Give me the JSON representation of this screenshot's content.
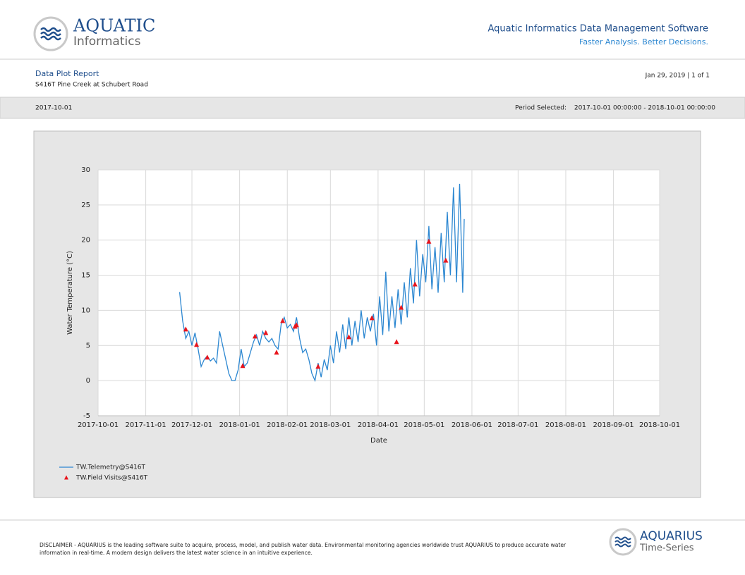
{
  "header": {
    "logo_line1": "AQUATIC",
    "logo_line2": "Informatics",
    "product": "Aquatic Informatics Data Management Software",
    "tagline": "Faster Analysis. Better Decisions."
  },
  "report": {
    "title": "Data Plot Report",
    "location": "S416T Pine Creek at Schubert Road",
    "page_info": "Jan 29, 2019 | 1 of 1",
    "start_date": "2017-10-01",
    "period_label": "Period Selected:",
    "period": "2017-10-01 00:00:00 - 2018-10-01 00:00:00"
  },
  "chart_data": {
    "type": "line",
    "xlabel": "Date",
    "ylabel": "Water Temperature (°C)",
    "xlim": [
      "2017-10-01",
      "2018-10-01"
    ],
    "xticks": [
      "2017-10-01",
      "2017-11-01",
      "2017-12-01",
      "2018-01-01",
      "2018-02-01",
      "2018-03-01",
      "2018-04-01",
      "2018-05-01",
      "2018-06-01",
      "2018-07-01",
      "2018-08-01",
      "2018-09-01",
      "2018-10-01"
    ],
    "ylim": [
      -5,
      30
    ],
    "yticks": [
      -5,
      0,
      5,
      10,
      15,
      20,
      25,
      30
    ],
    "grid": true,
    "legend": "bottom-left",
    "series": [
      {
        "name": "TW.Telemetry@S416T",
        "color": "#2c87d1",
        "marker": "line",
        "x": [
          "2017-11-23",
          "2017-11-25",
          "2017-11-27",
          "2017-11-29",
          "2017-12-01",
          "2017-12-03",
          "2017-12-05",
          "2017-12-07",
          "2017-12-09",
          "2017-12-11",
          "2017-12-13",
          "2017-12-15",
          "2017-12-17",
          "2017-12-19",
          "2017-12-21",
          "2017-12-23",
          "2017-12-25",
          "2017-12-27",
          "2017-12-29",
          "2017-12-31",
          "2018-01-02",
          "2018-01-04",
          "2018-01-06",
          "2018-01-08",
          "2018-01-10",
          "2018-01-12",
          "2018-01-14",
          "2018-01-16",
          "2018-01-18",
          "2018-01-20",
          "2018-01-22",
          "2018-01-24",
          "2018-01-26",
          "2018-01-28",
          "2018-01-30",
          "2018-02-01",
          "2018-02-03",
          "2018-02-05",
          "2018-02-07",
          "2018-02-09",
          "2018-02-11",
          "2018-02-13",
          "2018-02-15",
          "2018-02-17",
          "2018-02-19",
          "2018-02-21",
          "2018-02-23",
          "2018-02-25",
          "2018-02-27",
          "2018-03-01",
          "2018-03-03",
          "2018-03-05",
          "2018-03-07",
          "2018-03-09",
          "2018-03-11",
          "2018-03-13",
          "2018-03-15",
          "2018-03-17",
          "2018-03-19",
          "2018-03-21",
          "2018-03-23",
          "2018-03-25",
          "2018-03-27",
          "2018-03-29",
          "2018-03-31",
          "2018-04-02",
          "2018-04-04",
          "2018-04-06",
          "2018-04-08",
          "2018-04-10",
          "2018-04-12",
          "2018-04-14",
          "2018-04-16",
          "2018-04-18",
          "2018-04-20",
          "2018-04-22",
          "2018-04-24",
          "2018-04-26",
          "2018-04-28",
          "2018-04-30",
          "2018-05-02",
          "2018-05-04",
          "2018-05-06",
          "2018-05-08",
          "2018-05-10",
          "2018-05-12",
          "2018-05-14",
          "2018-05-16",
          "2018-05-18",
          "2018-05-20",
          "2018-05-22",
          "2018-05-24",
          "2018-05-26",
          "2018-05-27"
        ],
        "values": [
          12.6,
          8.5,
          6.0,
          7.0,
          5.0,
          6.8,
          4.5,
          2.0,
          3.0,
          3.5,
          2.8,
          3.2,
          2.5,
          7.0,
          5.0,
          3.0,
          1.0,
          0,
          0,
          1.5,
          4.5,
          2.0,
          2.5,
          4.0,
          5.5,
          6.5,
          5.0,
          7.0,
          6.0,
          5.5,
          6.0,
          5.0,
          4.5,
          8.0,
          9.0,
          7.5,
          8.0,
          7.0,
          9.0,
          6.0,
          4.0,
          4.5,
          3.0,
          1.0,
          0,
          2.5,
          0.5,
          3.0,
          1.5,
          5.0,
          2.5,
          7.0,
          4.0,
          8.0,
          4.5,
          9.0,
          5.0,
          8.5,
          5.5,
          10.0,
          6.0,
          9.0,
          7.0,
          9.5,
          5.0,
          12.0,
          6.5,
          15.5,
          7.0,
          12.0,
          7.5,
          13.0,
          8.0,
          14.0,
          9.0,
          16.0,
          11.0,
          20.0,
          12.0,
          18.0,
          14.0,
          22.0,
          13.0,
          19.0,
          12.5,
          21.0,
          14.0,
          24.0,
          15.0,
          27.5,
          14.0,
          28.0,
          12.5,
          23.0
        ]
      },
      {
        "name": "TW.Field Visits@S416T",
        "color": "#e8141c",
        "marker": "triangle",
        "x": [
          "2017-11-27",
          "2017-12-04",
          "2017-12-11",
          "2018-01-03",
          "2018-01-11",
          "2018-01-18",
          "2018-01-25",
          "2018-01-29",
          "2018-02-06",
          "2018-02-07",
          "2018-02-21",
          "2018-03-13",
          "2018-03-28",
          "2018-04-13",
          "2018-04-16",
          "2018-04-25",
          "2018-05-04",
          "2018-05-15"
        ],
        "values": [
          7.3,
          5.1,
          3.3,
          2.1,
          6.3,
          6.8,
          4.0,
          8.5,
          7.7,
          7.9,
          2.0,
          6.2,
          8.9,
          5.5,
          10.4,
          13.7,
          19.8,
          17.1
        ]
      }
    ]
  },
  "footer": {
    "disclaimer_line1": "DISCLAIMER - AQUARIUS is the leading software suite to acquire, process, model, and publish water data. Environmental monitoring agencies worldwide trust AQUARIUS to produce accurate water",
    "disclaimer_line2": "information in real-time. A modern design delivers the latest water science in an intuitive experience.",
    "logo_line1": "AQUARIUS",
    "logo_line2": "Time-Series"
  }
}
